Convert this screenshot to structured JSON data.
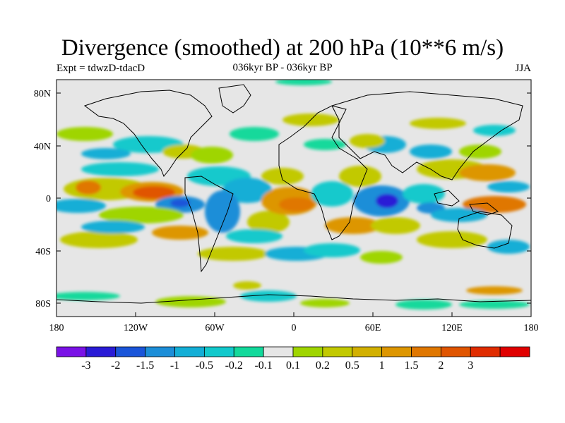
{
  "title": "Divergence (smoothed) at 200 hPa (10**6 m/s)",
  "experiment": "Expt = tdwzD-tdacD",
  "period": "036kyr BP - 036kyr BP",
  "season": "JJA",
  "axes": {
    "lat_labels": [
      "80N",
      "40N",
      "0",
      "40S",
      "80S"
    ],
    "lon_labels": [
      "180",
      "120W",
      "60W",
      "0",
      "60E",
      "120E",
      "180"
    ]
  },
  "colorbar": {
    "colors": [
      "#7a12e6",
      "#2a1bd6",
      "#1a55d9",
      "#1c8ed8",
      "#13aed6",
      "#12c9cc",
      "#12d99b",
      "#e6e6e6",
      "#9fd500",
      "#c2c900",
      "#d2b000",
      "#dd9600",
      "#e07700",
      "#e05500",
      "#e02c00",
      "#e00000"
    ],
    "labels": [
      "-3",
      "-2",
      "-1.5",
      "-1",
      "-0.5",
      "-0.2",
      "-0.1",
      "0.1",
      "0.2",
      "0.5",
      "1",
      "1.5",
      "2",
      "3"
    ]
  }
}
